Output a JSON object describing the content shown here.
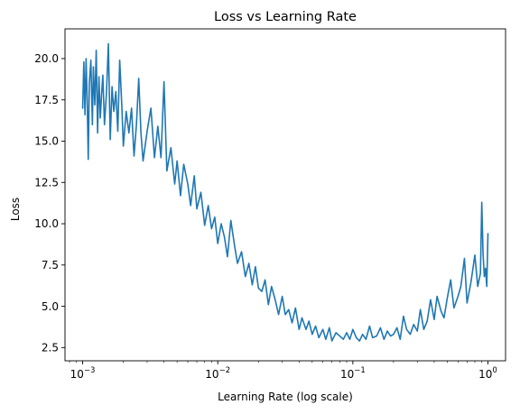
{
  "chart_data": {
    "type": "line",
    "title": "Loss vs Learning Rate",
    "xlabel": "Learning Rate (log scale)",
    "ylabel": "Loss",
    "x_scale": "log",
    "xlim": [
      0.00074,
      1.35
    ],
    "ylim": [
      1.7,
      21.8
    ],
    "grid": false,
    "legend": "none",
    "x_ticks": [
      {
        "value": 0.001,
        "base": "10",
        "exponent": "−3"
      },
      {
        "value": 0.01,
        "base": "10",
        "exponent": "−2"
      },
      {
        "value": 0.1,
        "base": "10",
        "exponent": "−1"
      },
      {
        "value": 1,
        "base": "10",
        "exponent": "0"
      }
    ],
    "y_ticks": [
      {
        "value": 2.5,
        "label": "2.5"
      },
      {
        "value": 5.0,
        "label": "5.0"
      },
      {
        "value": 7.5,
        "label": "7.5"
      },
      {
        "value": 10.0,
        "label": "10.0"
      },
      {
        "value": 12.5,
        "label": "12.5"
      },
      {
        "value": 15.0,
        "label": "15.0"
      },
      {
        "value": 17.5,
        "label": "17.5"
      },
      {
        "value": 20.0,
        "label": "20.0"
      }
    ],
    "series": [
      {
        "color": "#1f77b4",
        "x": [
          0.001,
          0.00102,
          0.00104,
          0.00106,
          0.00108,
          0.0011,
          0.00112,
          0.00115,
          0.00118,
          0.0012,
          0.00123,
          0.00126,
          0.00129,
          0.00132,
          0.00135,
          0.00138,
          0.00141,
          0.00145,
          0.0015,
          0.00155,
          0.0016,
          0.00165,
          0.0017,
          0.00176,
          0.00182,
          0.00188,
          0.00195,
          0.002,
          0.0021,
          0.0022,
          0.0023,
          0.0024,
          0.0025,
          0.0026,
          0.0027,
          0.0028,
          0.003,
          0.0032,
          0.0034,
          0.0036,
          0.0038,
          0.004,
          0.0042,
          0.0045,
          0.0048,
          0.005,
          0.0053,
          0.0056,
          0.006,
          0.0063,
          0.0067,
          0.007,
          0.0075,
          0.008,
          0.0085,
          0.009,
          0.0095,
          0.01,
          0.0106,
          0.0112,
          0.0118,
          0.0125,
          0.0133,
          0.014,
          0.015,
          0.016,
          0.017,
          0.018,
          0.019,
          0.02,
          0.0212,
          0.0224,
          0.0237,
          0.025,
          0.0266,
          0.0282,
          0.03,
          0.0316,
          0.0335,
          0.0355,
          0.0376,
          0.04,
          0.042,
          0.045,
          0.0473,
          0.05,
          0.053,
          0.056,
          0.06,
          0.063,
          0.067,
          0.07,
          0.075,
          0.08,
          0.085,
          0.09,
          0.095,
          0.1,
          0.106,
          0.112,
          0.118,
          0.125,
          0.133,
          0.14,
          0.15,
          0.16,
          0.17,
          0.18,
          0.19,
          0.2,
          0.212,
          0.224,
          0.237,
          0.25,
          0.266,
          0.282,
          0.3,
          0.316,
          0.335,
          0.355,
          0.376,
          0.4,
          0.42,
          0.45,
          0.473,
          0.5,
          0.53,
          0.56,
          0.6,
          0.63,
          0.67,
          0.7,
          0.75,
          0.8,
          0.84,
          0.88,
          0.9,
          0.92,
          0.94,
          0.96,
          0.98,
          1.0
        ],
        "y": [
          17.0,
          19.8,
          16.6,
          20.0,
          17.5,
          13.9,
          18.5,
          19.9,
          16.0,
          19.5,
          17.2,
          20.5,
          15.5,
          18.9,
          16.4,
          17.8,
          19.0,
          16.0,
          17.9,
          20.9,
          15.1,
          18.3,
          16.8,
          18.0,
          15.6,
          19.9,
          17.1,
          14.7,
          16.8,
          15.5,
          17.0,
          14.1,
          16.0,
          18.8,
          15.5,
          13.8,
          15.6,
          17.0,
          14.0,
          15.9,
          14.0,
          18.6,
          13.2,
          14.6,
          12.4,
          13.8,
          11.7,
          13.6,
          12.4,
          11.1,
          12.9,
          10.9,
          11.9,
          9.9,
          11.1,
          9.7,
          10.4,
          8.8,
          10.0,
          9.2,
          8.0,
          10.2,
          8.7,
          7.6,
          8.3,
          6.8,
          7.6,
          6.3,
          7.4,
          6.1,
          5.9,
          6.6,
          5.1,
          6.2,
          5.4,
          4.5,
          5.6,
          4.5,
          4.8,
          4.0,
          4.9,
          3.6,
          4.3,
          3.6,
          4.1,
          3.3,
          3.8,
          3.1,
          3.6,
          3.0,
          3.7,
          2.9,
          3.4,
          3.2,
          3.0,
          3.4,
          3.0,
          3.6,
          3.1,
          2.9,
          3.3,
          3.0,
          3.8,
          3.1,
          3.2,
          3.7,
          3.0,
          3.5,
          3.2,
          3.3,
          3.7,
          3.0,
          4.4,
          3.6,
          3.3,
          3.9,
          3.5,
          4.8,
          3.6,
          4.1,
          5.4,
          4.2,
          5.6,
          4.7,
          4.3,
          5.5,
          6.6,
          4.9,
          5.6,
          6.2,
          7.9,
          5.2,
          6.5,
          8.1,
          6.2,
          7.0,
          11.3,
          8.2,
          6.8,
          7.3,
          6.2,
          9.4
        ]
      }
    ]
  }
}
